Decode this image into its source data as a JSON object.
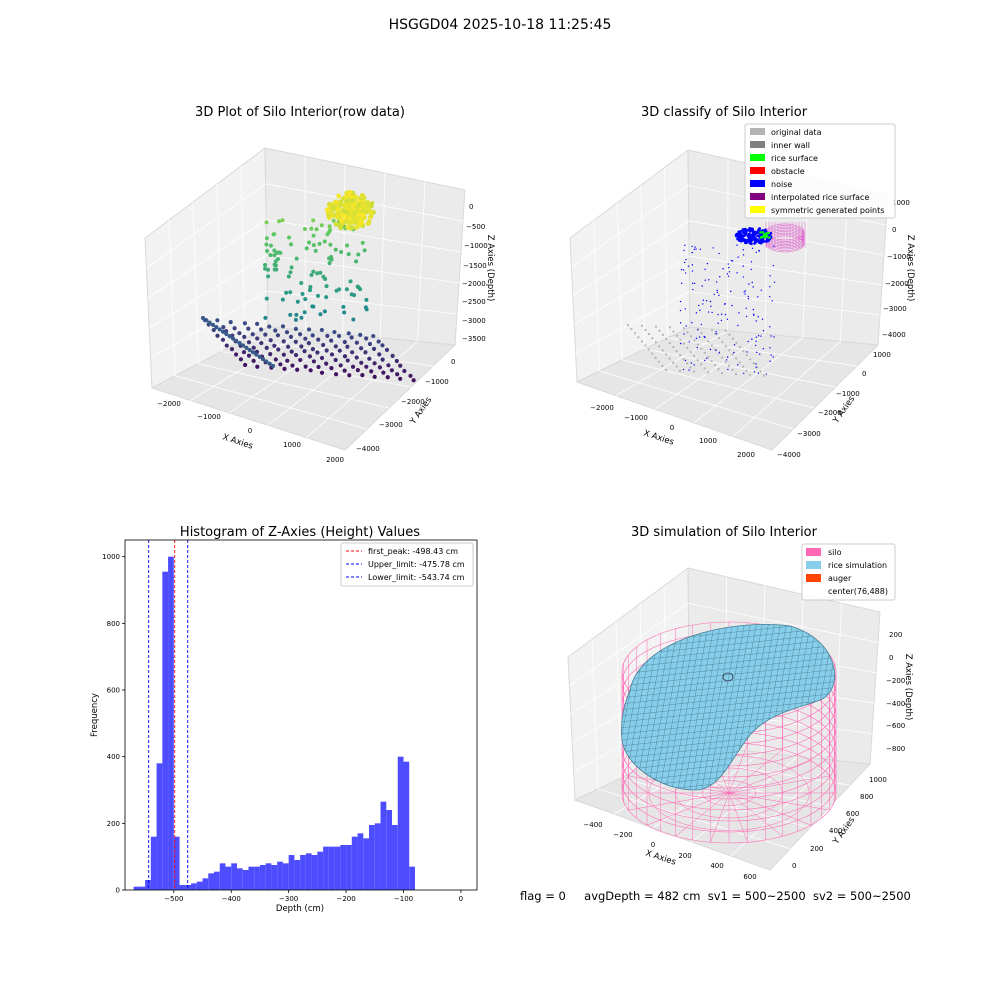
{
  "suptitle": "HSGGD04 2025-10-18 11:25:45",
  "footer": {
    "flag": "flag = 0",
    "avg_depth": "avgDepth = 482 cm",
    "sv1": "sv1 = 500~2500",
    "sv2": "sv2 = 500~2500"
  },
  "chart_data": [
    {
      "type": "scatter",
      "title": "3D Plot of Silo Interior(row data)",
      "xlabel": "X Axies",
      "ylabel": "Y Axies",
      "zlabel": "Z Axies (Depth)",
      "x_ticks": [
        "−2000",
        "−1000",
        "0",
        "1000",
        "2000"
      ],
      "y_ticks": [
        "0",
        "−1000",
        "−2000",
        "−3000",
        "−4000"
      ],
      "z_ticks": [
        "0",
        "−500",
        "−1000",
        "−1500",
        "−2000",
        "−2500",
        "−3000",
        "−3500"
      ],
      "colormap": "viridis",
      "colors": {
        "high": "#fde725",
        "mid": "#5ec962",
        "low": "#440154"
      }
    },
    {
      "type": "scatter",
      "title": "3D classify of Silo Interior",
      "xlabel": "X Axies",
      "ylabel": "Y Axies",
      "zlabel": "Z Axies (Depth)",
      "x_ticks": [
        "−2000",
        "−1000",
        "0",
        "1000",
        "2000"
      ],
      "y_ticks": [
        "1000",
        "0",
        "−1000",
        "−2000",
        "−3000",
        "−4000"
      ],
      "z_ticks": [
        "1000",
        "0",
        "−1000",
        "−2000",
        "−3000",
        "−4000"
      ],
      "legend": [
        {
          "label": "original data",
          "color": "#b3b3b3"
        },
        {
          "label": "inner wall",
          "color": "#808080"
        },
        {
          "label": "rice surface",
          "color": "#00ff00"
        },
        {
          "label": "obstacle",
          "color": "#ff0000"
        },
        {
          "label": "noise",
          "color": "#0000ff"
        },
        {
          "label": "interpolated rice surface",
          "color": "#800080"
        },
        {
          "label": "symmetric generated points",
          "color": "#ffff00"
        }
      ],
      "legend_loc": "upper right"
    },
    {
      "type": "bar",
      "title": "Histogram of Z-Axies (Height) Values",
      "xlabel": "Depth (cm)",
      "ylabel": "Frequency",
      "xlim": [
        -585,
        28
      ],
      "ylim": [
        0,
        1050
      ],
      "x_ticks": [
        -500,
        -400,
        -300,
        -200,
        -100,
        0
      ],
      "y_ticks": [
        0,
        200,
        400,
        600,
        800,
        1000
      ],
      "bar_color": "#4d4dff",
      "bin_start": -570,
      "bin_width": 10,
      "values": [
        10,
        10,
        30,
        160,
        380,
        955,
        1000,
        160,
        15,
        15,
        20,
        25,
        35,
        50,
        55,
        80,
        70,
        80,
        65,
        60,
        70,
        70,
        75,
        80,
        75,
        85,
        80,
        105,
        90,
        105,
        110,
        105,
        115,
        130,
        130,
        130,
        135,
        135,
        160,
        170,
        155,
        195,
        200,
        265,
        240,
        195,
        400,
        385,
        70
      ],
      "lines": [
        {
          "label": "first_peak: -498.43 cm",
          "x": -498.43,
          "color": "#ff0000"
        },
        {
          "label": "Upper_limit: -475.78 cm",
          "x": -475.78,
          "color": "#0000ff"
        },
        {
          "label": "Lower_limit: -543.74 cm",
          "x": -543.74,
          "color": "#0000ff"
        }
      ],
      "legend_loc": "upper right"
    },
    {
      "type": "surface",
      "title": "3D simulation of Silo Interior",
      "xlabel": "X Axies",
      "ylabel": "Y Axies",
      "zlabel": "Z Axies (Depth)",
      "x_ticks": [
        "−400",
        "−200",
        "0",
        "200",
        "400",
        "600"
      ],
      "y_ticks": [
        "0",
        "200",
        "400",
        "600",
        "800",
        "1000"
      ],
      "z_ticks": [
        "200",
        "0",
        "−200",
        "−400",
        "−600",
        "−800"
      ],
      "legend": [
        {
          "label": "silo",
          "color": "#ff69b4"
        },
        {
          "label": "rice simulation",
          "color": "#87ceeb"
        },
        {
          "label": "auger",
          "color": "#ff4500"
        },
        {
          "label": "center(76,488)",
          "color": ""
        }
      ],
      "legend_loc": "upper right"
    }
  ]
}
